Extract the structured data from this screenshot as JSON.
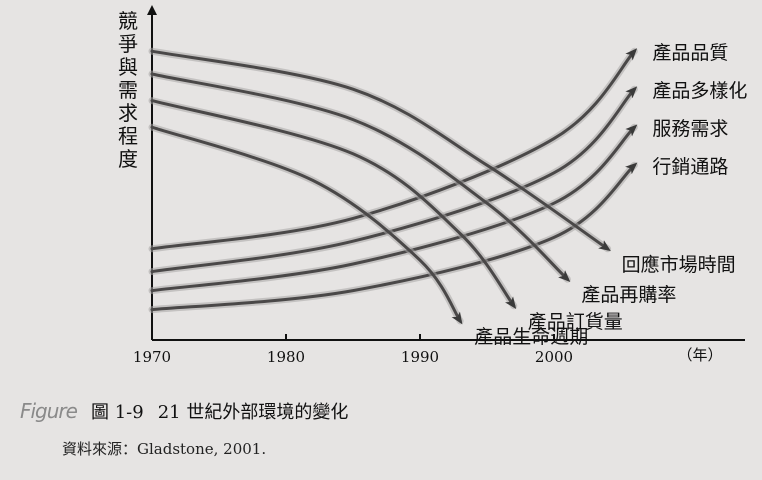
{
  "chart_data": {
    "type": "line",
    "ylabel": "競爭與需求程度",
    "xlabel": "（年）",
    "x_ticks": [
      "1970",
      "1980",
      "1990",
      "2000"
    ],
    "xlim": [
      1970,
      2010
    ],
    "series": [
      {
        "name": "產品品質",
        "trend": "rising",
        "points": [
          [
            1970,
            2.4
          ],
          [
            1985,
            3.2
          ],
          [
            2000,
            5.3
          ],
          [
            2006,
            7.6
          ]
        ]
      },
      {
        "name": "產品多樣化",
        "trend": "rising",
        "points": [
          [
            1970,
            1.8
          ],
          [
            1985,
            2.6
          ],
          [
            2000,
            4.4
          ],
          [
            2006,
            6.6
          ]
        ]
      },
      {
        "name": "服務需求",
        "trend": "rising",
        "points": [
          [
            1970,
            1.3
          ],
          [
            1985,
            2.0
          ],
          [
            2000,
            3.6
          ],
          [
            2006,
            5.6
          ]
        ]
      },
      {
        "name": "行銷通路",
        "trend": "rising",
        "points": [
          [
            1970,
            0.8
          ],
          [
            1985,
            1.3
          ],
          [
            2000,
            2.7
          ],
          [
            2006,
            4.6
          ]
        ]
      },
      {
        "name": "回應市場時間",
        "trend": "falling",
        "points": [
          [
            1970,
            7.6
          ],
          [
            1985,
            6.6
          ],
          [
            1995,
            4.6
          ],
          [
            2004,
            2.4
          ]
        ]
      },
      {
        "name": "產品再購率",
        "trend": "falling",
        "points": [
          [
            1970,
            7.0
          ],
          [
            1985,
            5.8
          ],
          [
            1995,
            3.6
          ],
          [
            2001,
            1.6
          ]
        ]
      },
      {
        "name": "產品訂貨量",
        "trend": "falling",
        "points": [
          [
            1970,
            6.3
          ],
          [
            1985,
            4.9
          ],
          [
            1993,
            2.8
          ],
          [
            1997,
            0.9
          ]
        ]
      },
      {
        "name": "產品生命週期",
        "trend": "falling",
        "points": [
          [
            1970,
            5.6
          ],
          [
            1982,
            4.2
          ],
          [
            1990,
            2.1
          ],
          [
            1993,
            0.5
          ]
        ]
      }
    ]
  },
  "caption": {
    "badge": "Figure",
    "number": "圖 1-9",
    "title": "21 世紀外部環境的變化"
  },
  "source": "資料來源：Gladstone, 2001."
}
